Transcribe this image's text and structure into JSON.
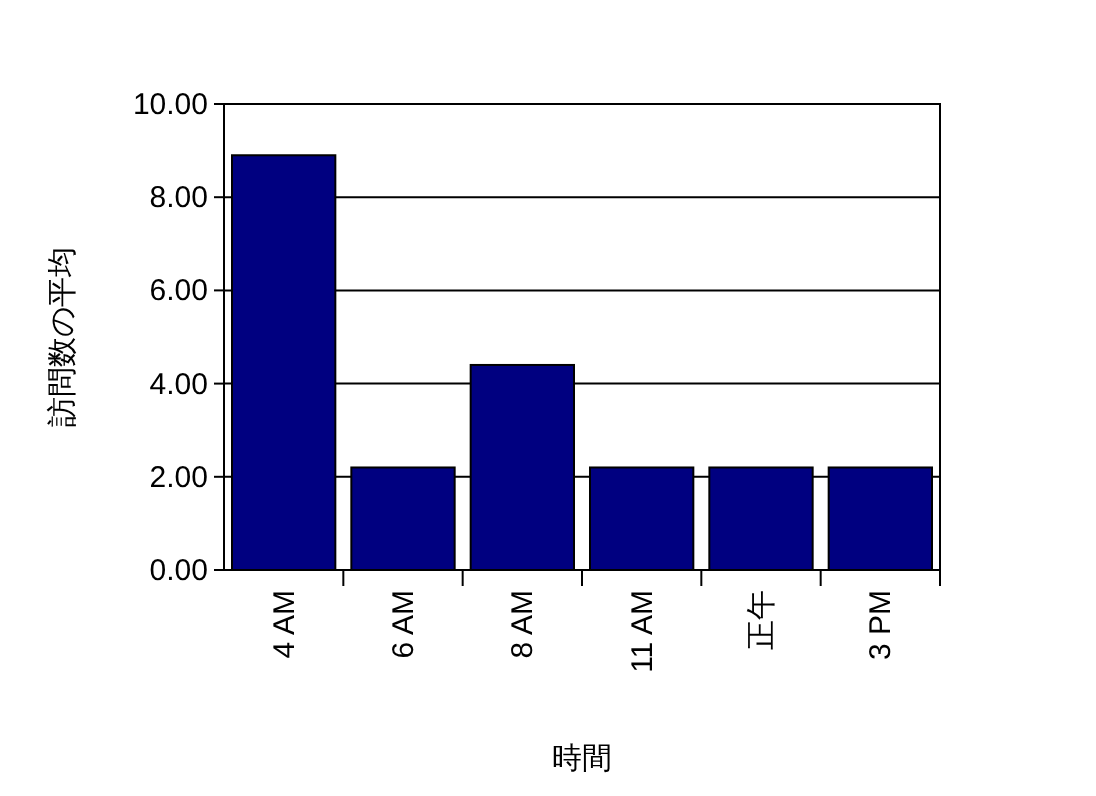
{
  "chart_data": {
    "type": "bar",
    "xlabel": "時間",
    "ylabel": "訪問数の平均",
    "categories": [
      "4 AM",
      "6 AM",
      "8 AM",
      "11 AM",
      "正午",
      "3 PM"
    ],
    "values": [
      8.9,
      2.2,
      4.4,
      2.2,
      2.2,
      2.2
    ],
    "color": "#000080",
    "ylim": [
      0,
      10
    ],
    "yticks": [
      {
        "value": 0,
        "label": "0.00"
      },
      {
        "value": 2,
        "label": "2.00"
      },
      {
        "value": 4,
        "label": "4.00"
      },
      {
        "value": 6,
        "label": "6.00"
      },
      {
        "value": 8,
        "label": "8.00"
      },
      {
        "value": 10,
        "label": "10.00"
      }
    ],
    "grid": "y"
  }
}
